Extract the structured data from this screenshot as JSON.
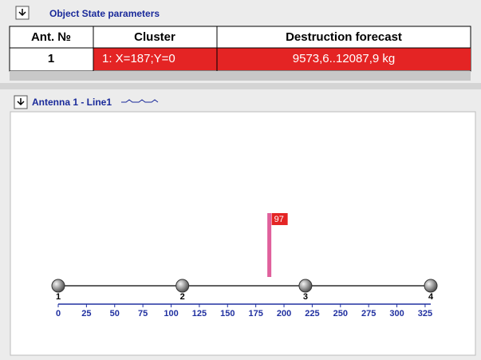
{
  "header": {
    "title": "Object State parameters"
  },
  "table": {
    "headers": [
      "Ant. №",
      "Cluster",
      "Destruction forecast"
    ],
    "rows": [
      [
        "1",
        "1: X=187;Y=0",
        "9573,6..12087,9 kg"
      ]
    ]
  },
  "antenna_panel": {
    "title": "Antenna 1 - Line1"
  },
  "chart_data": {
    "type": "bar",
    "xlim": [
      0,
      330
    ],
    "xticks": [
      0,
      25,
      50,
      75,
      100,
      125,
      150,
      175,
      200,
      225,
      250,
      275,
      300,
      325
    ],
    "antennas": {
      "labels": [
        "1",
        "2",
        "3",
        "4"
      ],
      "x": [
        0,
        110,
        219,
        330
      ]
    },
    "x": [
      187
    ],
    "values": [
      97
    ],
    "color": "#e0609c"
  }
}
